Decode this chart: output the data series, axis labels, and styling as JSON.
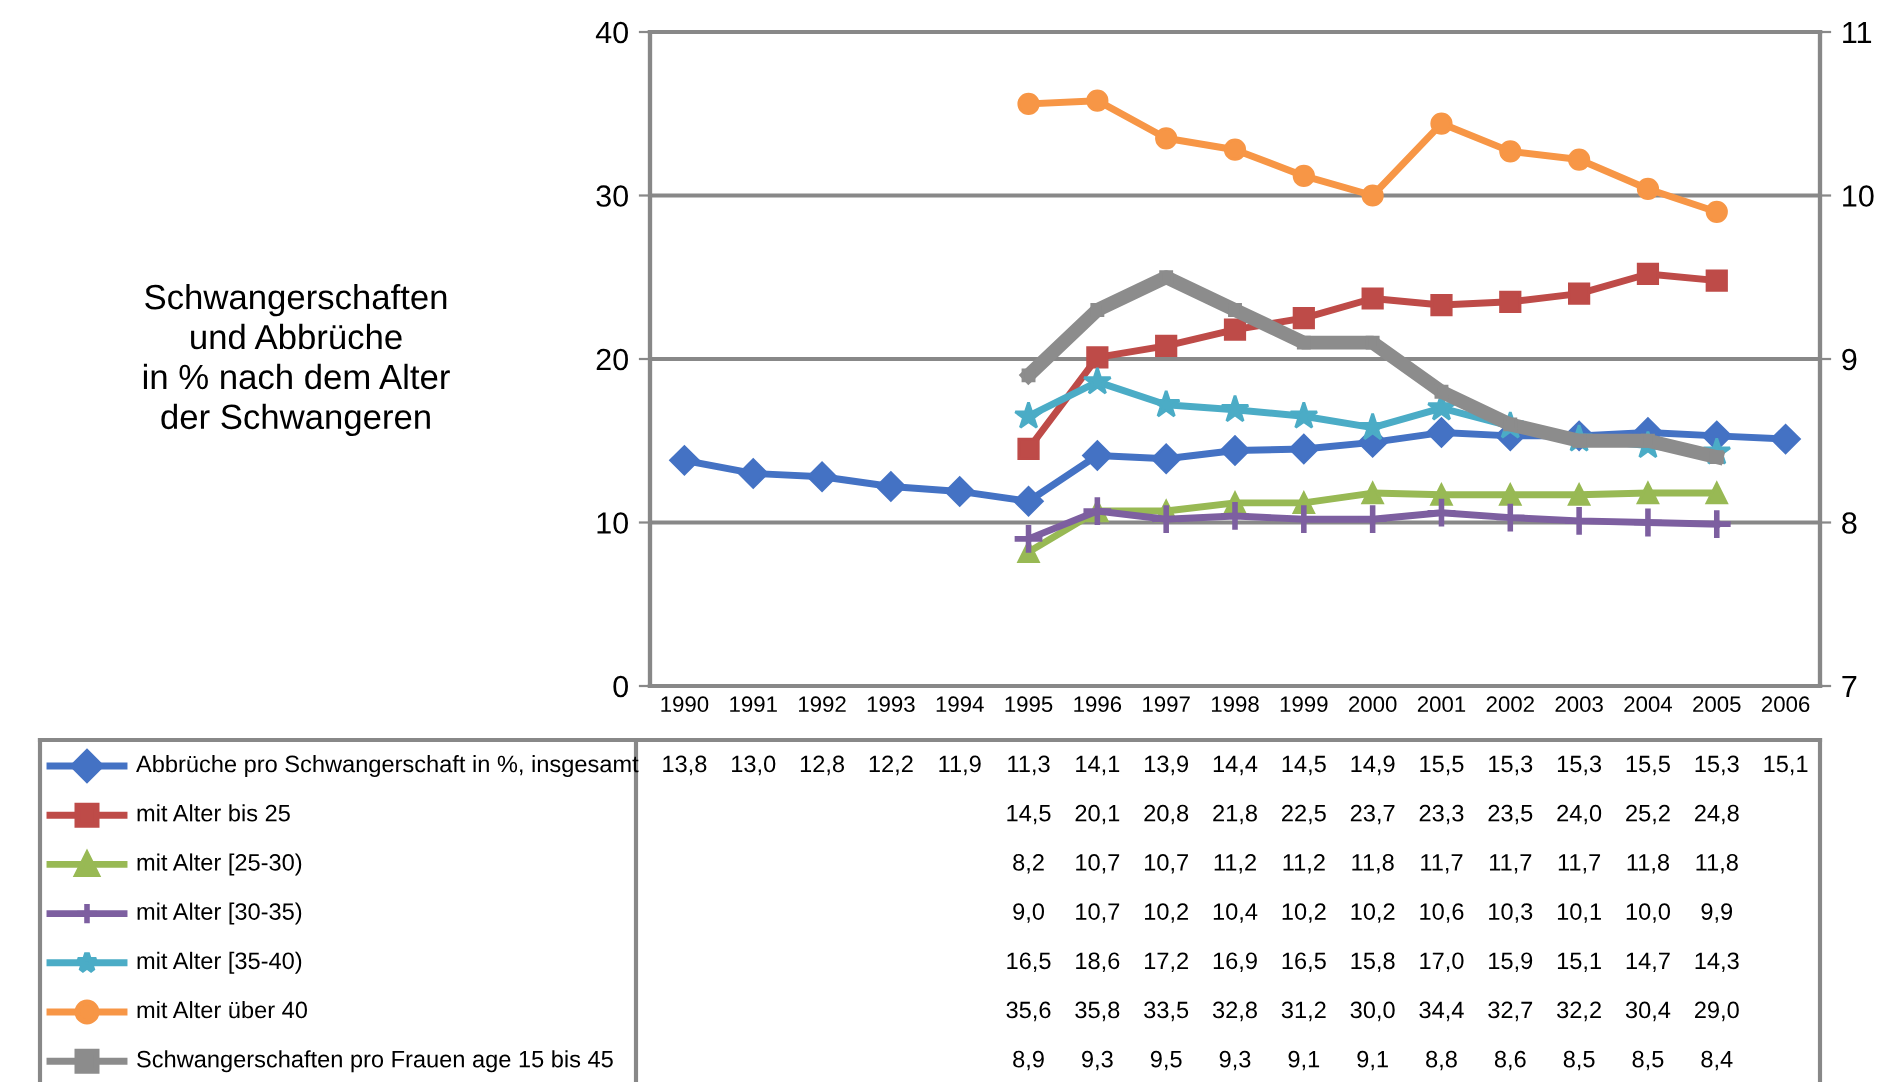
{
  "chart_data": {
    "type": "line",
    "title": "Schwangerschaften\nund Abbrüche\nin % nach dem Alter\nder Schwangeren",
    "categories": [
      "1990",
      "1991",
      "1992",
      "1993",
      "1994",
      "1995",
      "1996",
      "1997",
      "1998",
      "1999",
      "2000",
      "2001",
      "2002",
      "2003",
      "2004",
      "2005",
      "2006"
    ],
    "series": [
      {
        "name": "Abbrüche pro Schwangerschaft in %, insgesamt",
        "color": "#4472c4",
        "marker": "diamond",
        "values": [
          13.8,
          13.0,
          12.8,
          12.2,
          11.9,
          11.3,
          14.1,
          13.9,
          14.4,
          14.5,
          14.9,
          15.5,
          15.3,
          15.3,
          15.5,
          15.3,
          15.1
        ],
        "value_labels": [
          "13,8",
          "13,0",
          "12,8",
          "12,2",
          "11,9",
          "11,3",
          "14,1",
          "13,9",
          "14,4",
          "14,5",
          "14,9",
          "15,5",
          "15,3",
          "15,3",
          "15,5",
          "15,3",
          "15,1"
        ]
      },
      {
        "name": "mit Alter bis 25",
        "color": "#be4b48",
        "marker": "square",
        "values": [
          null,
          null,
          null,
          null,
          null,
          14.5,
          20.1,
          20.8,
          21.8,
          22.5,
          23.7,
          23.3,
          23.5,
          24.0,
          25.2,
          24.8,
          null
        ],
        "value_labels": [
          null,
          null,
          null,
          null,
          null,
          "14,5",
          "20,1",
          "20,8",
          "21,8",
          "22,5",
          "23,7",
          "23,3",
          "23,5",
          "24,0",
          "25,2",
          "24,8",
          null
        ]
      },
      {
        "name": "mit Alter [25-30)",
        "color": "#98b954",
        "marker": "triangle",
        "values": [
          null,
          null,
          null,
          null,
          null,
          8.2,
          10.7,
          10.7,
          11.2,
          11.2,
          11.8,
          11.7,
          11.7,
          11.7,
          11.8,
          11.8,
          null
        ],
        "value_labels": [
          null,
          null,
          null,
          null,
          null,
          "8,2",
          "10,7",
          "10,7",
          "11,2",
          "11,2",
          "11,8",
          "11,7",
          "11,7",
          "11,7",
          "11,8",
          "11,8",
          null
        ]
      },
      {
        "name": "mit Alter [30-35)",
        "color": "#7d5fa0",
        "marker": "cross",
        "values": [
          null,
          null,
          null,
          null,
          null,
          9.0,
          10.7,
          10.2,
          10.4,
          10.2,
          10.2,
          10.6,
          10.3,
          10.1,
          10.0,
          9.9,
          null
        ],
        "value_labels": [
          null,
          null,
          null,
          null,
          null,
          "9,0",
          "10,7",
          "10,2",
          "10,4",
          "10,2",
          "10,2",
          "10,6",
          "10,3",
          "10,1",
          "10,0",
          "9,9",
          null
        ]
      },
      {
        "name": "mit Alter [35-40)",
        "color": "#4bacc6",
        "marker": "star",
        "values": [
          null,
          null,
          null,
          null,
          null,
          16.5,
          18.6,
          17.2,
          16.9,
          16.5,
          15.8,
          17.0,
          15.9,
          15.1,
          14.7,
          14.3,
          null
        ],
        "value_labels": [
          null,
          null,
          null,
          null,
          null,
          "16,5",
          "18,6",
          "17,2",
          "16,9",
          "16,5",
          "15,8",
          "17,0",
          "15,9",
          "15,1",
          "14,7",
          "14,3",
          null
        ]
      },
      {
        "name": "mit Alter über 40",
        "color": "#f79646",
        "marker": "circle",
        "values": [
          null,
          null,
          null,
          null,
          null,
          35.6,
          35.8,
          33.5,
          32.8,
          31.2,
          30.0,
          34.4,
          32.7,
          32.2,
          30.4,
          29.0,
          null
        ],
        "value_labels": [
          null,
          null,
          null,
          null,
          null,
          "35,6",
          "35,8",
          "33,5",
          "32,8",
          "31,2",
          "30,0",
          "34,4",
          "32,7",
          "32,2",
          "30,4",
          "29,0",
          null
        ]
      },
      {
        "name": "Schwangerschaften pro Frauen age 15 bis 45",
        "color": "#8c8c8c",
        "marker": "square",
        "axis": "y2",
        "values": [
          null,
          null,
          null,
          null,
          null,
          8.9,
          9.3,
          9.5,
          9.3,
          9.1,
          9.1,
          8.8,
          8.6,
          8.5,
          8.5,
          8.4,
          null
        ],
        "value_labels": [
          null,
          null,
          null,
          null,
          null,
          "8,9",
          "9,3",
          "9,5",
          "9,3",
          "9,1",
          "9,1",
          "8,8",
          "8,6",
          "8,5",
          "8,5",
          "8,4",
          null
        ]
      }
    ],
    "ylim": [
      0,
      40
    ],
    "yticks": [
      0,
      10,
      20,
      30,
      40
    ],
    "y2lim": [
      7,
      11
    ],
    "y2ticks": [
      7,
      8,
      9,
      10,
      11
    ],
    "grid": "y",
    "legend": "bottom"
  }
}
